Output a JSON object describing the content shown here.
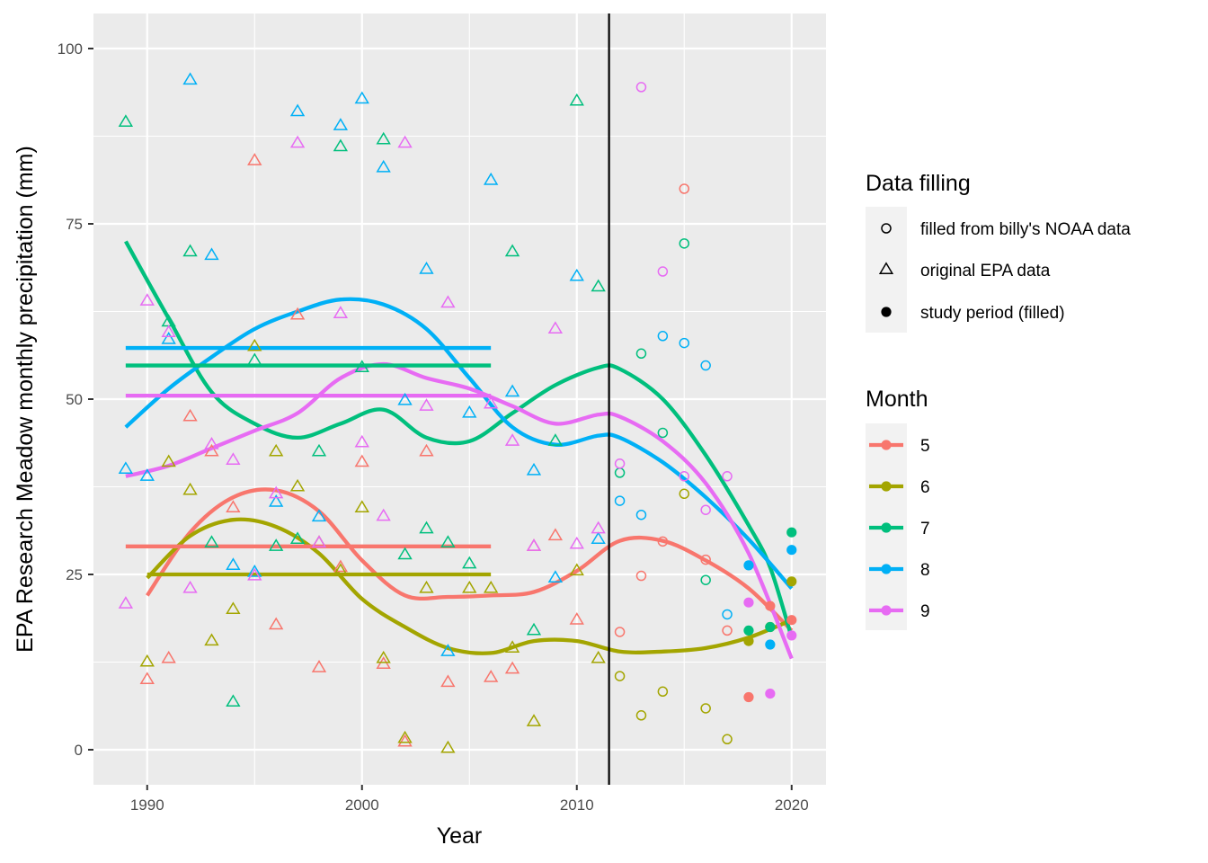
{
  "chart_data": {
    "type": "scatter",
    "xlabel": "Year",
    "ylabel": "EPA Research Meadow monthly precipitation (mm)",
    "xlim": [
      1987.5,
      2021.6
    ],
    "ylim": [
      -5,
      105
    ],
    "x_ticks": [
      1990,
      2000,
      2010,
      2020
    ],
    "y_ticks": [
      0,
      25,
      50,
      75,
      100
    ],
    "x_tick_labels": [
      "1990",
      "2000",
      "2010",
      "2020"
    ],
    "y_tick_labels": [
      "0",
      "25",
      "50",
      "75",
      "100"
    ],
    "grid": true,
    "panel_background": "#ebebeb",
    "vertical_line_x": 2011.5,
    "legends": {
      "shape": {
        "title": "Data filling",
        "items": [
          {
            "label": "filled from billy's NOAA data",
            "shape": "open-circle"
          },
          {
            "label": "original EPA data",
            "shape": "open-triangle"
          },
          {
            "label": "study period (filled)",
            "shape": "filled-circle"
          }
        ]
      },
      "color": {
        "title": "Month",
        "items": [
          {
            "label": "5",
            "color": "#F8766D"
          },
          {
            "label": "6",
            "color": "#A3A500"
          },
          {
            "label": "7",
            "color": "#00BF7D"
          },
          {
            "label": "8",
            "color": "#00B0F6"
          },
          {
            "label": "9",
            "color": "#E76BF3"
          }
        ]
      }
    },
    "series": [
      {
        "name": "5",
        "color": "#F8766D",
        "original_epa": [
          [
            1990,
            10
          ],
          [
            1991,
            13
          ],
          [
            1992,
            47.5
          ],
          [
            1993,
            42.5
          ],
          [
            1994,
            34.5
          ],
          [
            1995,
            84
          ],
          [
            1996,
            17.8
          ],
          [
            1997,
            62
          ],
          [
            1998,
            11.7
          ],
          [
            1999,
            26
          ],
          [
            2000,
            41
          ],
          [
            2001,
            12.2
          ],
          [
            2002,
            1.1
          ],
          [
            2003,
            42.5
          ],
          [
            2004,
            9.6
          ],
          [
            2006,
            10.3
          ],
          [
            2007,
            11.5
          ],
          [
            2008,
            29
          ],
          [
            2009,
            30.5
          ],
          [
            2010,
            18.5
          ]
        ],
        "filled_noaa": [
          [
            2012,
            16.8
          ],
          [
            2013,
            24.8
          ],
          [
            2014,
            29.7
          ],
          [
            2015,
            80
          ],
          [
            2016,
            27.1
          ],
          [
            2017,
            17
          ]
        ],
        "study_period": [
          [
            2018,
            7.5
          ],
          [
            2019,
            20.5
          ],
          [
            2020,
            18.5
          ]
        ],
        "mean_line": {
          "x": [
            1989,
            2006
          ],
          "y": 29
        },
        "smooth": [
          [
            1990,
            22
          ],
          [
            1992,
            31
          ],
          [
            1994,
            36
          ],
          [
            1996,
            37
          ],
          [
            1998,
            34
          ],
          [
            2000,
            27
          ],
          [
            2002,
            22
          ],
          [
            2004,
            21.8
          ],
          [
            2006,
            22
          ],
          [
            2008,
            22.5
          ],
          [
            2010,
            25.5
          ],
          [
            2012,
            29.8
          ],
          [
            2014,
            29.8
          ],
          [
            2016,
            27
          ],
          [
            2018,
            23
          ],
          [
            2020,
            17
          ]
        ]
      },
      {
        "name": "6",
        "color": "#A3A500",
        "original_epa": [
          [
            1990,
            12.5
          ],
          [
            1991,
            41
          ],
          [
            1992,
            37
          ],
          [
            1993,
            15.5
          ],
          [
            1994,
            20
          ],
          [
            1995,
            57.5
          ],
          [
            1996,
            42.5
          ],
          [
            1997,
            37.5
          ],
          [
            1998,
            29.5
          ],
          [
            1999,
            25.5
          ],
          [
            2000,
            34.5
          ],
          [
            2001,
            13
          ],
          [
            2002,
            1.6
          ],
          [
            2003,
            23
          ],
          [
            2004,
            0.2
          ],
          [
            2005,
            23
          ],
          [
            2006,
            23
          ],
          [
            2007,
            14.5
          ],
          [
            2008,
            4
          ],
          [
            2010,
            25.5
          ],
          [
            2011,
            13
          ]
        ],
        "filled_noaa": [
          [
            2012,
            10.5
          ],
          [
            2013,
            4.9
          ],
          [
            2014,
            8.3
          ],
          [
            2015,
            36.5
          ],
          [
            2016,
            5.9
          ],
          [
            2017,
            1.5
          ]
        ],
        "study_period": [
          [
            2018,
            15.5
          ],
          [
            2019,
            17.5
          ],
          [
            2020,
            24
          ]
        ],
        "mean_line": {
          "x": [
            1990,
            2006
          ],
          "y": 25
        },
        "smooth": [
          [
            1990,
            24.5
          ],
          [
            1992,
            30.5
          ],
          [
            1994,
            32.8
          ],
          [
            1996,
            31.8
          ],
          [
            1998,
            28
          ],
          [
            2000,
            21.5
          ],
          [
            2002,
            17.5
          ],
          [
            2004,
            14.5
          ],
          [
            2006,
            13.8
          ],
          [
            2008,
            15.5
          ],
          [
            2010,
            15.5
          ],
          [
            2012,
            14
          ],
          [
            2014,
            14
          ],
          [
            2016,
            14.5
          ],
          [
            2018,
            16
          ],
          [
            2020,
            18.5
          ]
        ]
      },
      {
        "name": "7",
        "color": "#00BF7D",
        "original_epa": [
          [
            1989,
            89.5
          ],
          [
            1991,
            61
          ],
          [
            1992,
            71
          ],
          [
            1993,
            29.5
          ],
          [
            1994,
            6.8
          ],
          [
            1995,
            55.5
          ],
          [
            1996,
            29
          ],
          [
            1997,
            30
          ],
          [
            1998,
            42.5
          ],
          [
            1999,
            86
          ],
          [
            2000,
            54.5
          ],
          [
            2001,
            87
          ],
          [
            2002,
            27.8
          ],
          [
            2003,
            31.5
          ],
          [
            2004,
            29.5
          ],
          [
            2005,
            26.5
          ],
          [
            2007,
            71
          ],
          [
            2008,
            17
          ],
          [
            2009,
            44
          ],
          [
            2010,
            92.5
          ],
          [
            2011,
            66
          ]
        ],
        "filled_noaa": [
          [
            2012,
            39.5
          ],
          [
            2013,
            56.5
          ],
          [
            2014,
            45.2
          ],
          [
            2015,
            72.2
          ],
          [
            2016,
            24.2
          ]
        ],
        "study_period": [
          [
            2018,
            17
          ],
          [
            2019,
            17.5
          ],
          [
            2020,
            31
          ]
        ],
        "mean_line": {
          "x": [
            1989,
            2006
          ],
          "y": 54.8
        },
        "smooth": [
          [
            1989,
            72.5
          ],
          [
            1991,
            61.5
          ],
          [
            1993,
            51
          ],
          [
            1995,
            46.5
          ],
          [
            1997,
            44.5
          ],
          [
            1999,
            46.5
          ],
          [
            2001,
            48.5
          ],
          [
            2003,
            44.5
          ],
          [
            2005,
            44
          ],
          [
            2007,
            48
          ],
          [
            2009,
            52
          ],
          [
            2011,
            54.5
          ],
          [
            2012,
            54.3
          ],
          [
            2014,
            50
          ],
          [
            2016,
            42
          ],
          [
            2018,
            32
          ],
          [
            2019,
            26
          ],
          [
            2020,
            16
          ]
        ]
      },
      {
        "name": "8",
        "color": "#00B0F6",
        "original_epa": [
          [
            1989,
            40
          ],
          [
            1990,
            39
          ],
          [
            1991,
            58.5
          ],
          [
            1992,
            95.5
          ],
          [
            1993,
            70.5
          ],
          [
            1994,
            26.3
          ],
          [
            1995,
            25.3
          ],
          [
            1996,
            35.3
          ],
          [
            1997,
            91
          ],
          [
            1998,
            33.2
          ],
          [
            1999,
            89
          ],
          [
            2000,
            92.8
          ],
          [
            2001,
            83
          ],
          [
            2002,
            49.8
          ],
          [
            2003,
            68.5
          ],
          [
            2004,
            14
          ],
          [
            2005,
            48
          ],
          [
            2006,
            81.2
          ],
          [
            2007,
            51
          ],
          [
            2008,
            39.8
          ],
          [
            2009,
            24.5
          ],
          [
            2010,
            67.5
          ],
          [
            2011,
            30
          ]
        ],
        "filled_noaa": [
          [
            2012,
            35.5
          ],
          [
            2013,
            33.5
          ],
          [
            2014,
            59
          ],
          [
            2015,
            58
          ],
          [
            2016,
            54.8
          ],
          [
            2017,
            19.3
          ]
        ],
        "study_period": [
          [
            2018,
            26.3
          ],
          [
            2019,
            15
          ],
          [
            2020,
            28.5
          ]
        ],
        "mean_line": {
          "x": [
            1989,
            2006
          ],
          "y": 57.3
        },
        "smooth": [
          [
            1989,
            46
          ],
          [
            1991,
            51.5
          ],
          [
            1993,
            56
          ],
          [
            1995,
            60
          ],
          [
            1997,
            62.5
          ],
          [
            1999,
            64.2
          ],
          [
            2001,
            63.5
          ],
          [
            2003,
            60
          ],
          [
            2005,
            53
          ],
          [
            2007,
            46
          ],
          [
            2009,
            43.5
          ],
          [
            2011,
            44.8
          ],
          [
            2012,
            44.5
          ],
          [
            2014,
            41
          ],
          [
            2016,
            36
          ],
          [
            2018,
            30
          ],
          [
            2020,
            23
          ]
        ]
      },
      {
        "name": "9",
        "color": "#E76BF3",
        "original_epa": [
          [
            1989,
            20.8
          ],
          [
            1990,
            64
          ],
          [
            1991,
            59.5
          ],
          [
            1992,
            23
          ],
          [
            1993,
            43.5
          ],
          [
            1994,
            41.3
          ],
          [
            1995,
            24.8
          ],
          [
            1996,
            36.5
          ],
          [
            1997,
            86.5
          ],
          [
            1998,
            29.5
          ],
          [
            1999,
            62.2
          ],
          [
            2000,
            43.8
          ],
          [
            2001,
            33.3
          ],
          [
            2002,
            86.5
          ],
          [
            2003,
            49
          ],
          [
            2004,
            63.7
          ],
          [
            2006,
            49.3
          ],
          [
            2007,
            44
          ],
          [
            2008,
            29
          ],
          [
            2009,
            60
          ],
          [
            2010,
            29.3
          ],
          [
            2011,
            31.5
          ]
        ],
        "filled_noaa": [
          [
            2012,
            40.8
          ],
          [
            2013,
            94.5
          ],
          [
            2014,
            68.2
          ],
          [
            2015,
            39
          ],
          [
            2016,
            34.2
          ],
          [
            2017,
            39
          ]
        ],
        "study_period": [
          [
            2018,
            21
          ],
          [
            2019,
            8
          ],
          [
            2020,
            16.3
          ]
        ],
        "mean_line": {
          "x": [
            1989,
            2006
          ],
          "y": 50.5
        },
        "smooth": [
          [
            1989,
            39
          ],
          [
            1991,
            40.5
          ],
          [
            1993,
            43
          ],
          [
            1995,
            45.5
          ],
          [
            1997,
            48
          ],
          [
            1999,
            53
          ],
          [
            2001,
            55
          ],
          [
            2003,
            53
          ],
          [
            2005,
            51.5
          ],
          [
            2007,
            49
          ],
          [
            2009,
            46.5
          ],
          [
            2011,
            47.8
          ],
          [
            2012,
            47.5
          ],
          [
            2014,
            44
          ],
          [
            2016,
            38
          ],
          [
            2018,
            28
          ],
          [
            2020,
            13
          ]
        ]
      }
    ]
  }
}
